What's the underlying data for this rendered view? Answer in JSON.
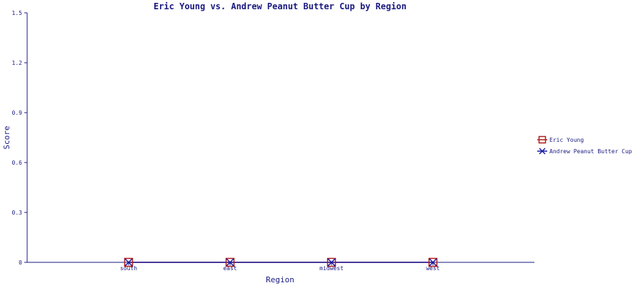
{
  "chart_data": {
    "type": "line",
    "title": "Eric Young vs. Andrew Peanut Butter Cup  by Region",
    "xlabel": "Region",
    "ylabel": "Score",
    "categories": [
      "south",
      "east",
      "midwest",
      "west"
    ],
    "ylim": [
      0,
      1.5
    ],
    "yticks": [
      "0",
      "0.3",
      "0.6",
      "0.9",
      "1.2",
      "1.5"
    ],
    "grid": false,
    "legend_position": "right",
    "series": [
      {
        "name": "Eric Young",
        "values": [
          0,
          0,
          0,
          0
        ],
        "color": "#b01c1c",
        "marker": "square"
      },
      {
        "name": "Andrew Peanut Butter Cup",
        "values": [
          0,
          0,
          0,
          0
        ],
        "color": "#1a1aa0",
        "marker": "x"
      }
    ]
  }
}
